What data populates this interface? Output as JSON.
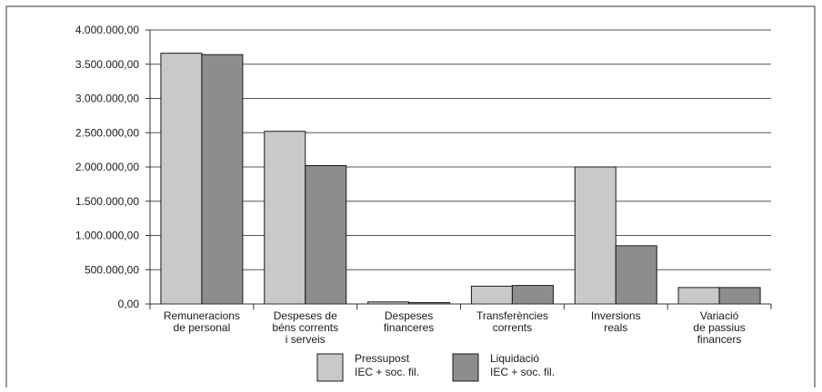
{
  "chart_data": {
    "type": "bar",
    "categories": [
      [
        "Remuneracions",
        "de personal"
      ],
      [
        "Despeses de",
        "béns corrents",
        "i serveis"
      ],
      [
        "Despeses",
        "financeres"
      ],
      [
        "Transferències",
        "corrents"
      ],
      [
        "Inversions",
        "reals"
      ],
      [
        "Variació",
        "de passius",
        "financers"
      ]
    ],
    "series": [
      {
        "name": [
          "Pressupost",
          "IEC + soc. fil."
        ],
        "color": "#c9c9c9",
        "values": [
          3660000,
          2520000,
          30000,
          260000,
          2000000,
          240000
        ]
      },
      {
        "name": [
          "Liquidació",
          "IEC + soc. fil."
        ],
        "color": "#8d8d8d",
        "values": [
          3640000,
          2020000,
          20000,
          270000,
          850000,
          240000
        ]
      }
    ],
    "ylim": [
      0,
      4000000
    ],
    "yticks": [
      "0,00",
      "500.000,00",
      "1.000.000,00",
      "1.500.000,00",
      "2.000.000,00",
      "2.500.000,00",
      "3.000.000,00",
      "3.500.000,00",
      "4.000.000,00"
    ],
    "grid": true,
    "legend": "bottom",
    "title": "",
    "xlabel": "",
    "ylabel": ""
  }
}
